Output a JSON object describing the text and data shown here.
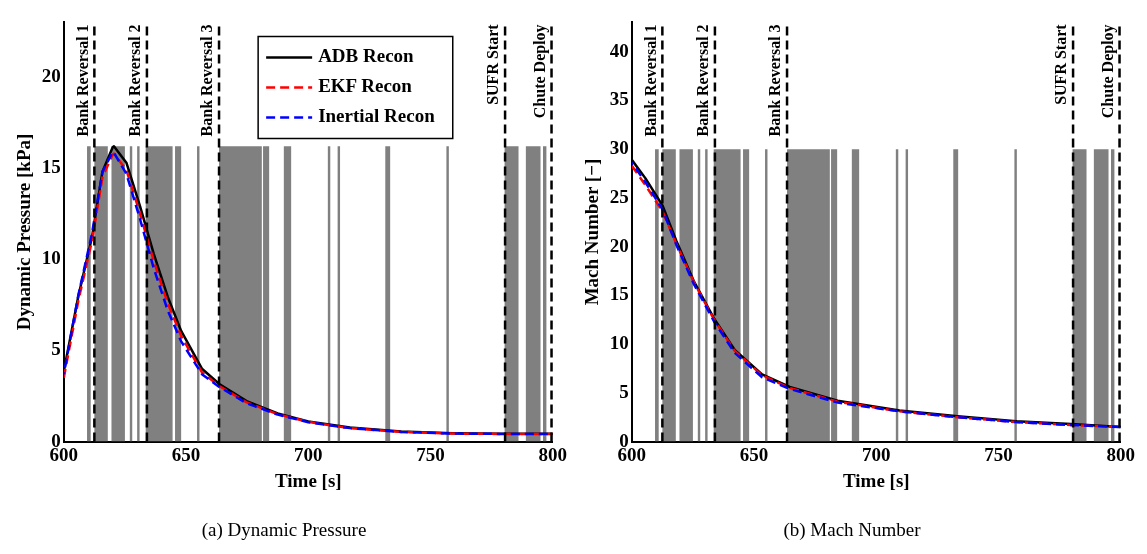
{
  "chart_data": [
    {
      "type": "line",
      "title": "(a) Dynamic Pressure",
      "xlabel": "Time [s]",
      "ylabel": "Dynamic Pressure [kPa]",
      "xlim": [
        600,
        800
      ],
      "xticks": [
        600,
        650,
        700,
        750,
        800
      ],
      "ylim": [
        0,
        23
      ],
      "yticks": [
        0,
        5,
        10,
        15,
        20
      ],
      "grid": false,
      "legend": "top right",
      "marker": "none",
      "ref_lines": [
        {
          "axis": "x",
          "value": 612.5,
          "label": "Bank Reversal 1",
          "line_style": "dashed",
          "color": "#000000"
        },
        {
          "axis": "x",
          "value": 634,
          "label": "Bank Reversal 2",
          "line_style": "dashed",
          "color": "#000000"
        },
        {
          "axis": "x",
          "value": 663.5,
          "label": "Bank Reversal 3",
          "line_style": "dashed",
          "color": "#000000"
        },
        {
          "axis": "x",
          "value": 780.5,
          "label": "SUFR Start",
          "line_style": "dashed",
          "color": "#000000"
        },
        {
          "axis": "x",
          "value": 799.5,
          "label": "Chute Deploy",
          "line_style": "dashed",
          "color": "#000000"
        }
      ],
      "series": [
        {
          "type": "area",
          "color": "#808080",
          "x": [
            609.5,
            609.5,
            611,
            611,
            612.5,
            612.5,
            618,
            618,
            619.5,
            619.5,
            625,
            625,
            627,
            627,
            628,
            628,
            630,
            630,
            631,
            631,
            633.5,
            633.5,
            644.5,
            644.5,
            645.5,
            645.5,
            648,
            648,
            654.5,
            654.5,
            655.5,
            655.5,
            663.5,
            663.5,
            681,
            681,
            681.5,
            681.5,
            684,
            684,
            690,
            690,
            693,
            693,
            708,
            708,
            709,
            709,
            712,
            712,
            713,
            713,
            731.5,
            731.5,
            733.5,
            733.5,
            756.5,
            756.5,
            757.5,
            757.5,
            780.3,
            780.3,
            786,
            786,
            789,
            789,
            795,
            795,
            796,
            796,
            797.5,
            797.5
          ],
          "values": [
            0,
            16.2,
            16.2,
            0,
            0,
            16.2,
            16.2,
            0,
            0,
            16.2,
            16.2,
            0,
            0,
            16.2,
            16.2,
            0,
            0,
            16.2,
            16.2,
            0,
            0,
            16.2,
            16.2,
            0,
            0,
            16.2,
            16.2,
            0,
            0,
            16.2,
            16.2,
            0,
            0,
            16.2,
            16.2,
            0,
            0,
            16.2,
            16.2,
            0,
            0,
            16.2,
            16.2,
            0,
            0,
            16.2,
            16.2,
            0,
            0,
            16.2,
            16.2,
            0,
            0,
            16.2,
            16.2,
            0,
            0,
            16.2,
            16.2,
            0,
            0,
            16.2,
            16.2,
            0,
            0,
            16.2,
            16.2,
            0,
            0,
            16.2,
            16.2,
            0
          ]
        },
        {
          "type": "line",
          "name": "ADB Recon",
          "color": "#000000",
          "line_style": "solid",
          "x": [
            600,
            605.9,
            611.5,
            615.8,
            620,
            620.5,
            625.6,
            631.2,
            636.8,
            642.5,
            648,
            656.5,
            663.6,
            674.8,
            687.5,
            700,
            717,
            738,
            759,
            780,
            800
          ],
          "values": [
            3.85,
            7.95,
            11.2,
            14.8,
            16.15,
            16.2,
            15.3,
            12.9,
            10.3,
            7.95,
            6.07,
            4.0,
            3.16,
            2.22,
            1.54,
            1.11,
            0.77,
            0.55,
            0.46,
            0.43,
            0.43
          ]
        },
        {
          "type": "line",
          "name": "EKF Recon",
          "color": "#ff0000",
          "line_style": "dashed",
          "x": [
            600,
            605.9,
            611.5,
            615.8,
            620,
            620.5,
            625.6,
            631.2,
            636.8,
            642.5,
            648,
            656.5,
            663.6,
            674.8,
            687.5,
            700,
            717,
            738,
            759,
            780,
            800
          ],
          "values": [
            3.5,
            7.7,
            11.0,
            14.5,
            15.75,
            15.8,
            14.9,
            12.5,
            9.9,
            7.6,
            5.8,
            3.8,
            3.05,
            2.15,
            1.5,
            1.08,
            0.74,
            0.53,
            0.44,
            0.42,
            0.42
          ]
        },
        {
          "type": "line",
          "name": "Inertial Recon",
          "color": "#0000ff",
          "line_style": "dashed",
          "x": [
            600,
            605.9,
            611.5,
            615.8,
            620,
            620.5,
            625.6,
            631.2,
            636.8,
            642.5,
            648,
            656.5,
            663.6,
            674.8,
            687.5,
            700,
            717,
            738,
            759,
            780,
            800
          ],
          "values": [
            3.7,
            8.0,
            11.4,
            14.8,
            15.9,
            15.85,
            14.7,
            12.2,
            9.5,
            7.2,
            5.5,
            3.7,
            3.0,
            2.1,
            1.48,
            1.06,
            0.74,
            0.53,
            0.44,
            0.42,
            0.42
          ]
        }
      ]
    },
    {
      "type": "line",
      "title": "(b) Mach Number",
      "xlabel": "Time [s]",
      "ylabel": "Mach Number [−]",
      "xlim": [
        600,
        800
      ],
      "xticks": [
        600,
        650,
        700,
        750,
        800
      ],
      "ylim": [
        0,
        43
      ],
      "yticks": [
        0,
        5,
        10,
        15,
        20,
        25,
        30,
        35,
        40
      ],
      "grid": false,
      "marker": "none",
      "ref_lines": [
        {
          "axis": "x",
          "value": 612.5,
          "label": "Bank Reversal 1",
          "line_style": "dashed",
          "color": "#000000"
        },
        {
          "axis": "x",
          "value": 634,
          "label": "Bank Reversal 2",
          "line_style": "dashed",
          "color": "#000000"
        },
        {
          "axis": "x",
          "value": 663.5,
          "label": "Bank Reversal 3",
          "line_style": "dashed",
          "color": "#000000"
        },
        {
          "axis": "x",
          "value": 780.5,
          "label": "SUFR Start",
          "line_style": "dashed",
          "color": "#000000"
        },
        {
          "axis": "x",
          "value": 799.5,
          "label": "Chute Deploy",
          "line_style": "dashed",
          "color": "#000000"
        }
      ],
      "series": [
        {
          "type": "area",
          "color": "#808080",
          "x": [
            609.5,
            609.5,
            611,
            611,
            612.5,
            612.5,
            618,
            618,
            619.5,
            619.5,
            625,
            625,
            627,
            627,
            628,
            628,
            630,
            630,
            631,
            631,
            633.5,
            633.5,
            644.5,
            644.5,
            645.5,
            645.5,
            648,
            648,
            654.5,
            654.5,
            655.5,
            655.5,
            663.5,
            663.5,
            681,
            681,
            681.5,
            681.5,
            684,
            684,
            690,
            690,
            693,
            693,
            708,
            708,
            709,
            709,
            712,
            712,
            713,
            713,
            731.5,
            731.5,
            733.5,
            733.5,
            756.5,
            756.5,
            757.5,
            757.5,
            780.3,
            780.3,
            786,
            786,
            789,
            789,
            795,
            795,
            796,
            796,
            797.5,
            797.5
          ],
          "values": [
            0,
            30,
            30,
            0,
            0,
            30,
            30,
            0,
            0,
            30,
            30,
            0,
            0,
            30,
            30,
            0,
            0,
            30,
            30,
            0,
            0,
            30,
            30,
            0,
            0,
            30,
            30,
            0,
            0,
            30,
            30,
            0,
            0,
            30,
            30,
            0,
            0,
            30,
            30,
            0,
            0,
            30,
            30,
            0,
            0,
            30,
            30,
            0,
            0,
            30,
            30,
            0,
            0,
            30,
            30,
            0,
            0,
            30,
            30,
            0,
            0,
            30,
            30,
            0,
            0,
            30,
            30,
            0,
            0,
            30,
            30,
            0
          ]
        },
        {
          "type": "line",
          "color": "#000000",
          "line_style": "solid",
          "x": [
            600,
            605.6,
            612.6,
            618.2,
            625.3,
            633.7,
            642.1,
            653.3,
            664.6,
            684.2,
            709.5,
            733.3,
            757.2,
            779.6,
            800
          ],
          "values": [
            28.9,
            27.0,
            24.2,
            20.6,
            16.5,
            12.6,
            9.4,
            6.9,
            5.6,
            4.2,
            3.2,
            2.6,
            2.1,
            1.8,
            1.5
          ]
        },
        {
          "type": "line",
          "color": "#ff0000",
          "line_style": "dashed",
          "x": [
            600,
            605.6,
            612.6,
            618.2,
            625.3,
            633.7,
            642.1,
            653.3,
            664.6,
            684.2,
            709.5,
            733.3,
            757.2,
            779.6,
            800
          ],
          "values": [
            28.3,
            26.3,
            23.6,
            20.3,
            16.4,
            12.5,
            9.3,
            6.8,
            5.5,
            4.1,
            3.1,
            2.5,
            2.0,
            1.7,
            1.5
          ]
        },
        {
          "type": "line",
          "color": "#0000ff",
          "line_style": "dashed",
          "x": [
            600,
            605.6,
            612.6,
            618.2,
            625.3,
            633.7,
            642.1,
            653.3,
            664.6,
            684.2,
            709.5,
            733.3,
            757.2,
            779.6,
            800
          ],
          "values": [
            28.6,
            26.6,
            23.8,
            20.2,
            16.2,
            12.3,
            9.1,
            6.6,
            5.4,
            4.0,
            3.1,
            2.5,
            2.0,
            1.7,
            1.5
          ]
        }
      ]
    }
  ]
}
